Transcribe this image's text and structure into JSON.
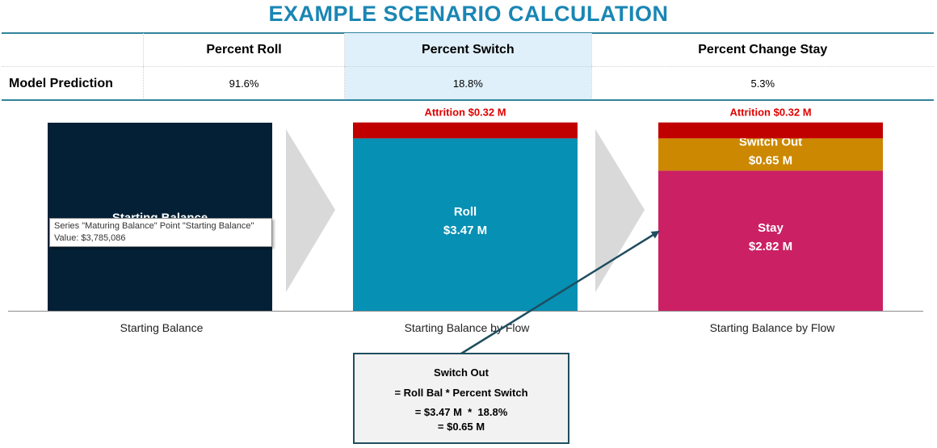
{
  "title": "EXAMPLE SCENARIO CALCULATION",
  "table": {
    "headers": [
      "",
      "Percent Roll",
      "Percent Switch",
      "Percent Change Stay"
    ],
    "row_label": "Model Prediction",
    "values": [
      "91.6%",
      "18.8%",
      "5.3%"
    ],
    "highlight_color": "#dff0fb"
  },
  "tooltip": {
    "line1": "Series \"Maturing Balance\" Point \"Starting Balance\"",
    "line2": "Value: $3,785,086"
  },
  "chart_data": {
    "type": "bar",
    "stacked": true,
    "categories": [
      "Starting Balance",
      "Starting Balance by Flow",
      "Starting Balance by Flow"
    ],
    "ylim": [
      0,
      3.785086
    ],
    "bars": [
      {
        "segments": [
          {
            "name": "Starting Balance",
            "value": 3.785086,
            "label": "Starting Balance",
            "sublabel": "",
            "color": "#032036"
          }
        ],
        "top_label": ""
      },
      {
        "segments": [
          {
            "name": "Roll",
            "value": 3.47,
            "label": "Roll",
            "sublabel": "$3.47 M",
            "color": "#0690b4"
          },
          {
            "name": "Attrition",
            "value": 0.32,
            "label": "",
            "sublabel": "",
            "color": "#c00000"
          }
        ],
        "top_label": "Attrition $0.32 M"
      },
      {
        "segments": [
          {
            "name": "Stay",
            "value": 2.82,
            "label": "Stay",
            "sublabel": "$2.82 M",
            "color": "#cb2064"
          },
          {
            "name": "Switch Out",
            "value": 0.65,
            "label": "Switch Out",
            "sublabel": "$0.65 M",
            "color": "#cc8800"
          },
          {
            "name": "Attrition",
            "value": 0.32,
            "label": "",
            "sublabel": "",
            "color": "#c00000"
          }
        ],
        "top_label": "Attrition $0.32 M"
      }
    ],
    "arrow_color": "#d9d9d9",
    "top_label_color": "#e00000"
  },
  "formula": {
    "title": "Switch Out",
    "line1": "= Roll Bal * Percent Switch",
    "line2": "= $3.47 M  *  18.8%",
    "line3": "= $0.65 M"
  }
}
